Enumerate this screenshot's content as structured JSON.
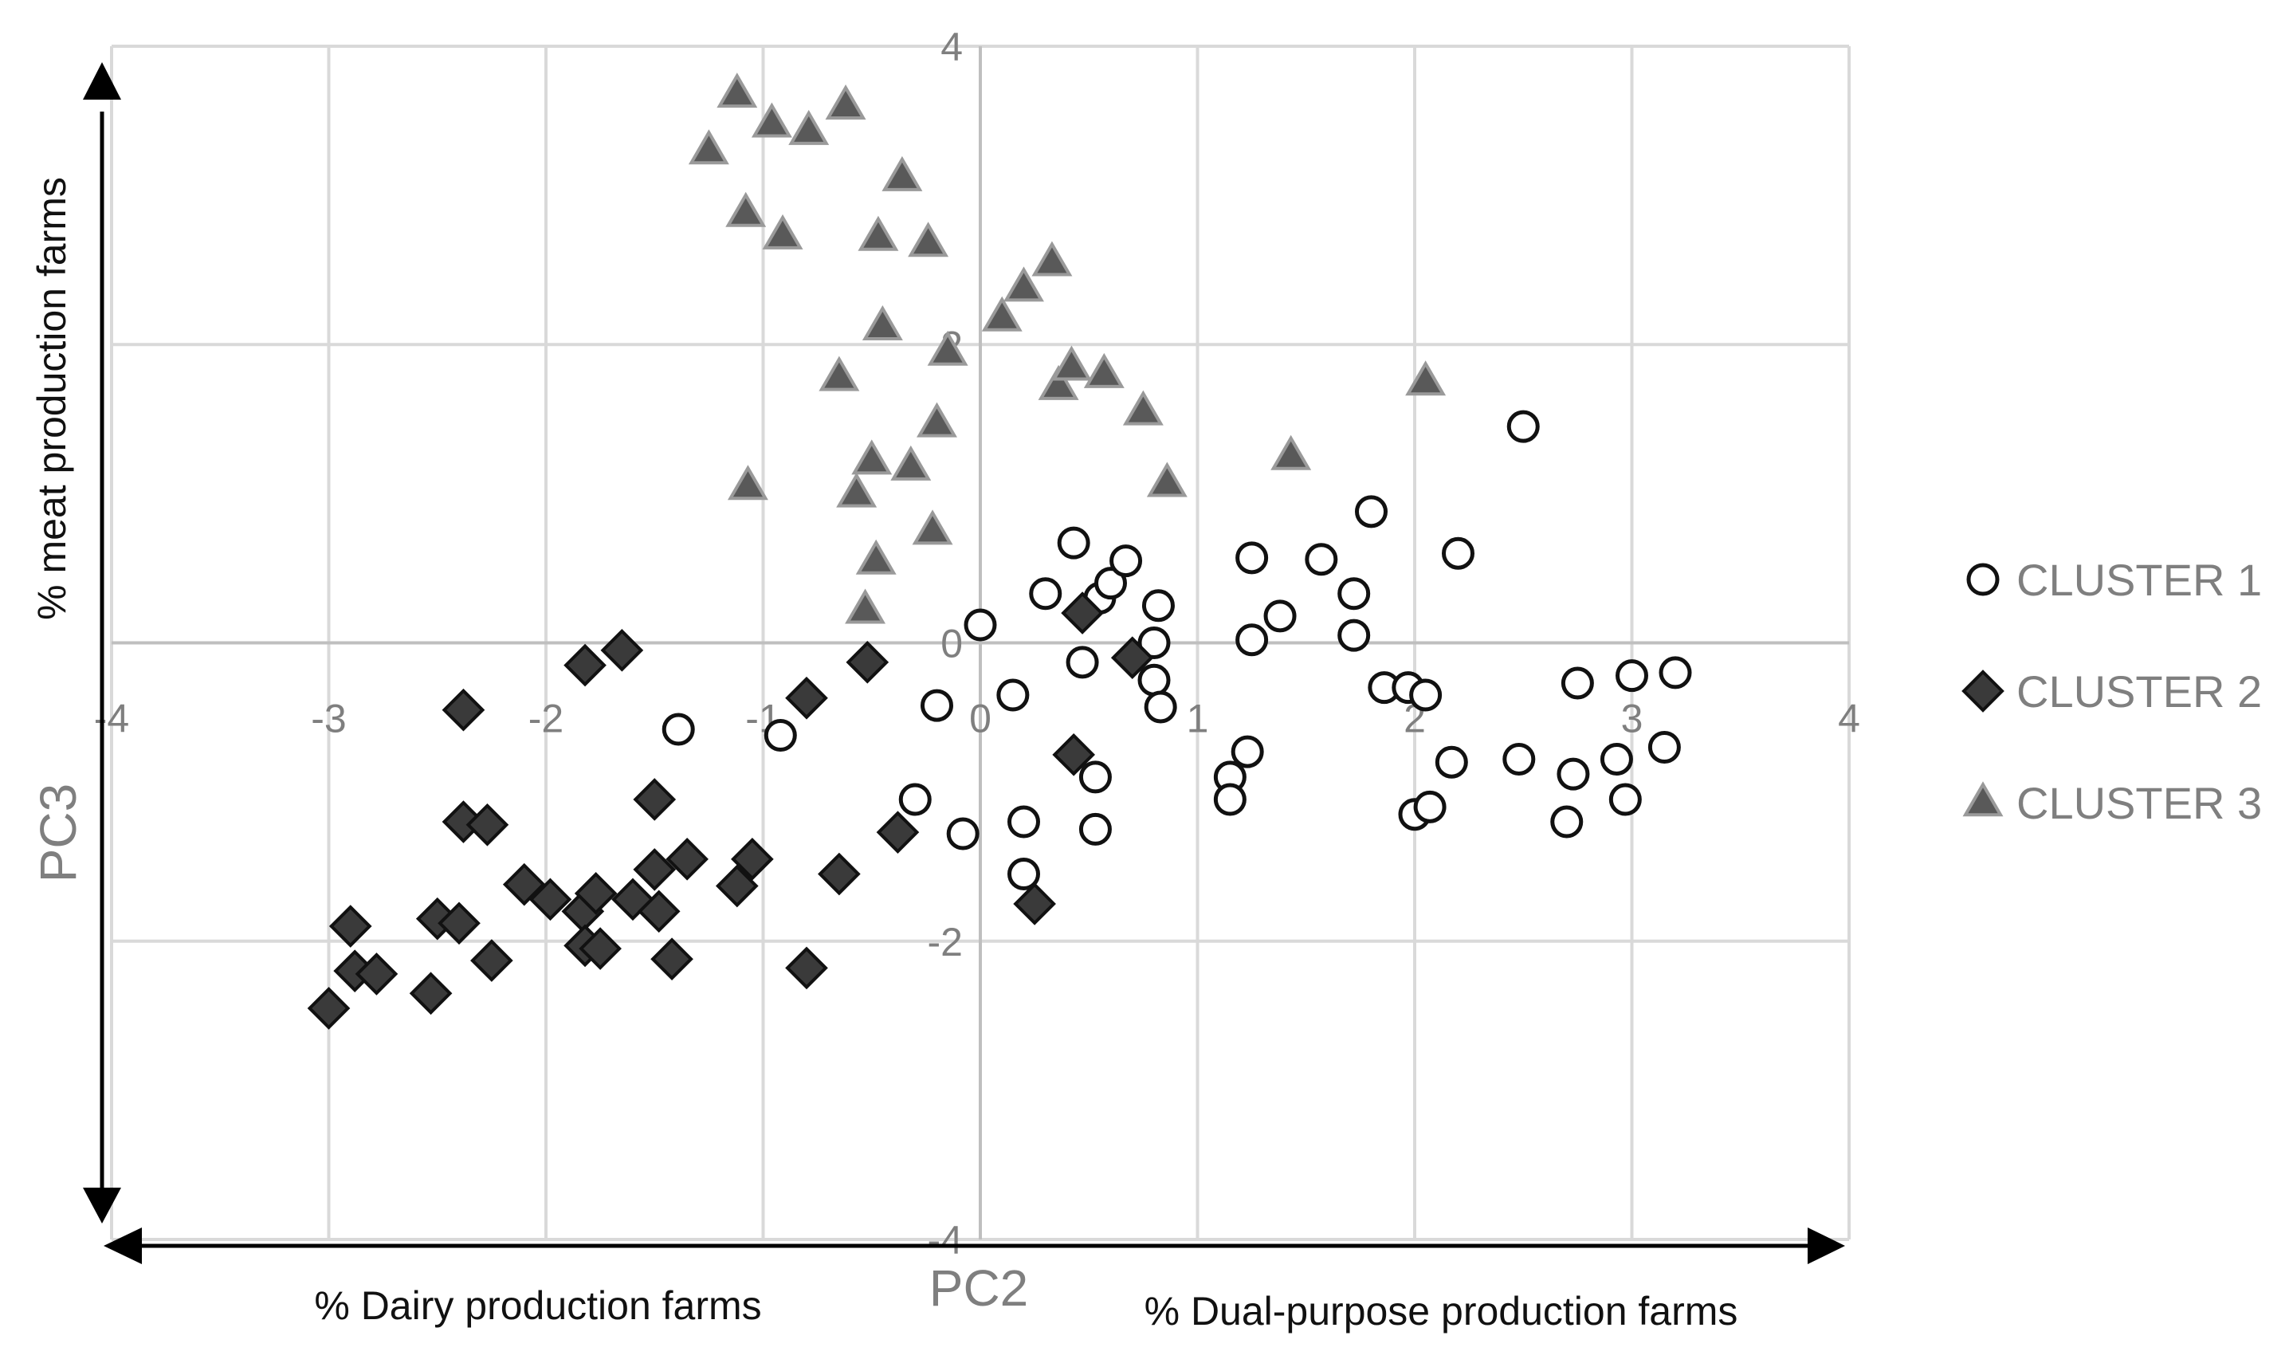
{
  "chart_data": {
    "type": "scatter",
    "xlabel": "PC2",
    "ylabel": "PC3",
    "xlim": [
      -4,
      4
    ],
    "ylim": [
      -4,
      4
    ],
    "x_ticks": [
      "-4",
      "-3",
      "-2",
      "-1",
      "0",
      "1",
      "2",
      "3",
      "4"
    ],
    "y_ticks": [
      "-4",
      "-2",
      "0",
      "2",
      "4"
    ],
    "grid": true,
    "legend_position": "right",
    "annotations": {
      "x_left": "% Dairy production farms",
      "x_right": "% Dual-purpose production farms",
      "y_top": "% meat production farms"
    },
    "series": [
      {
        "name": "CLUSTER 1",
        "marker": "circle",
        "color": "#ffffff",
        "stroke": "#111111",
        "points": [
          [
            0.0,
            0.12
          ],
          [
            0.15,
            -0.35
          ],
          [
            0.3,
            0.33
          ],
          [
            0.43,
            0.67
          ],
          [
            0.55,
            0.3
          ],
          [
            0.6,
            0.4
          ],
          [
            0.67,
            0.55
          ],
          [
            0.82,
            0.25
          ],
          [
            0.8,
            0.0
          ],
          [
            0.8,
            -0.25
          ],
          [
            0.83,
            -0.43
          ],
          [
            0.47,
            -0.13
          ],
          [
            0.53,
            -0.9
          ],
          [
            0.53,
            -1.25
          ],
          [
            0.2,
            -1.2
          ],
          [
            0.2,
            -1.55
          ],
          [
            -0.08,
            -1.28
          ],
          [
            -0.3,
            -1.05
          ],
          [
            -0.2,
            -0.42
          ],
          [
            -0.92,
            -0.62
          ],
          [
            -1.39,
            -0.58
          ],
          [
            1.25,
            0.57
          ],
          [
            1.25,
            0.02
          ],
          [
            1.38,
            0.18
          ],
          [
            1.57,
            0.56
          ],
          [
            1.72,
            0.33
          ],
          [
            1.72,
            0.05
          ],
          [
            1.8,
            0.88
          ],
          [
            1.86,
            -0.3
          ],
          [
            1.97,
            -0.3
          ],
          [
            2.05,
            -0.35
          ],
          [
            2.2,
            0.6
          ],
          [
            2.17,
            -0.8
          ],
          [
            2.0,
            -1.15
          ],
          [
            2.07,
            -1.1
          ],
          [
            1.23,
            -0.73
          ],
          [
            1.15,
            -0.9
          ],
          [
            1.15,
            -1.05
          ],
          [
            2.5,
            1.45
          ],
          [
            2.48,
            -0.78
          ],
          [
            2.73,
            -0.88
          ],
          [
            2.75,
            -0.27
          ],
          [
            2.7,
            -1.2
          ],
          [
            2.93,
            -0.78
          ],
          [
            3.0,
            -0.22
          ],
          [
            3.2,
            -0.2
          ],
          [
            3.15,
            -0.7
          ],
          [
            2.97,
            -1.05
          ]
        ]
      },
      {
        "name": "CLUSTER 2",
        "marker": "diamond",
        "color": "#3a3a3a",
        "stroke": "#111111",
        "points": [
          [
            -3.0,
            -2.45
          ],
          [
            -2.9,
            -1.9
          ],
          [
            -2.88,
            -2.2
          ],
          [
            -2.78,
            -2.22
          ],
          [
            -2.53,
            -2.35
          ],
          [
            -2.5,
            -1.85
          ],
          [
            -2.4,
            -1.88
          ],
          [
            -2.38,
            -1.2
          ],
          [
            -2.38,
            -0.45
          ],
          [
            -2.27,
            -1.22
          ],
          [
            -2.25,
            -2.13
          ],
          [
            -2.1,
            -1.62
          ],
          [
            -1.98,
            -1.72
          ],
          [
            -1.83,
            -1.8
          ],
          [
            -1.82,
            -2.03
          ],
          [
            -1.77,
            -1.68
          ],
          [
            -1.75,
            -2.05
          ],
          [
            -1.82,
            -0.15
          ],
          [
            -1.65,
            -0.05
          ],
          [
            -1.6,
            -1.72
          ],
          [
            -1.5,
            -1.05
          ],
          [
            -1.5,
            -1.52
          ],
          [
            -1.48,
            -1.8
          ],
          [
            -1.42,
            -2.12
          ],
          [
            -1.35,
            -1.45
          ],
          [
            -1.12,
            -1.63
          ],
          [
            -1.05,
            -1.45
          ],
          [
            -0.8,
            -2.18
          ],
          [
            -0.8,
            -0.37
          ],
          [
            -0.65,
            -1.55
          ],
          [
            -0.52,
            -0.13
          ],
          [
            -0.38,
            -1.27
          ],
          [
            0.25,
            -1.75
          ],
          [
            0.43,
            -0.75
          ],
          [
            0.47,
            0.2
          ],
          [
            0.7,
            -0.1
          ]
        ]
      },
      {
        "name": "CLUSTER 3",
        "marker": "triangle",
        "color": "#595959",
        "stroke": "#9a9a9a",
        "points": [
          [
            -1.25,
            3.3
          ],
          [
            -1.12,
            3.68
          ],
          [
            -1.08,
            2.88
          ],
          [
            -1.07,
            1.05
          ],
          [
            -0.96,
            3.48
          ],
          [
            -0.91,
            2.73
          ],
          [
            -0.79,
            3.43
          ],
          [
            -0.65,
            1.78
          ],
          [
            -0.62,
            3.6
          ],
          [
            -0.57,
            1.0
          ],
          [
            -0.53,
            0.22
          ],
          [
            -0.5,
            1.22
          ],
          [
            -0.48,
            0.55
          ],
          [
            -0.47,
            2.72
          ],
          [
            -0.45,
            2.12
          ],
          [
            -0.36,
            3.12
          ],
          [
            -0.32,
            1.18
          ],
          [
            -0.24,
            2.68
          ],
          [
            -0.22,
            0.75
          ],
          [
            -0.2,
            1.47
          ],
          [
            -0.15,
            1.95
          ],
          [
            0.1,
            2.18
          ],
          [
            0.2,
            2.38
          ],
          [
            0.33,
            2.55
          ],
          [
            0.36,
            1.72
          ],
          [
            0.42,
            1.85
          ],
          [
            0.57,
            1.8
          ],
          [
            0.75,
            1.55
          ],
          [
            0.86,
            1.07
          ],
          [
            1.43,
            1.25
          ],
          [
            2.05,
            1.75
          ]
        ]
      }
    ]
  }
}
